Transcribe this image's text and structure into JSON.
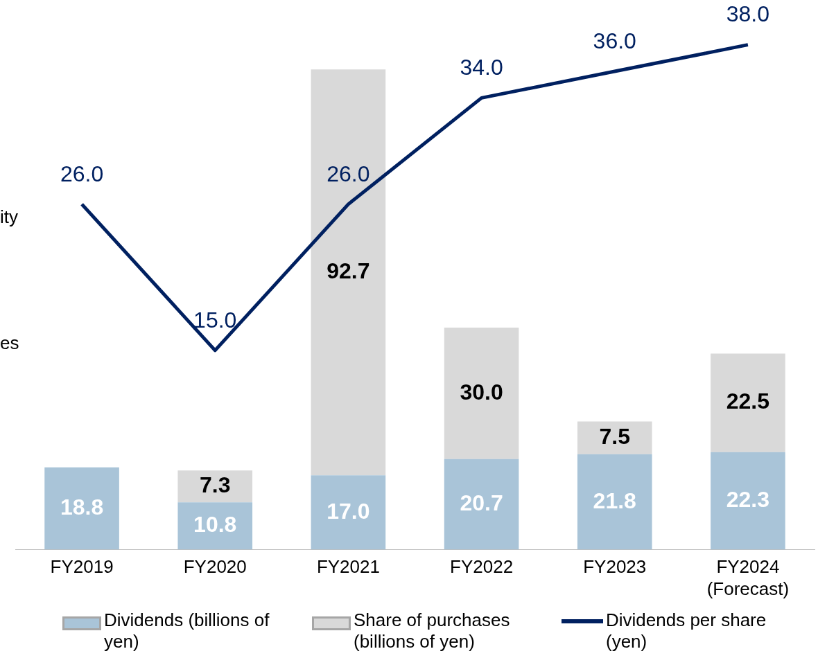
{
  "chart_data": {
    "type": "bar",
    "stacked": true,
    "categories": [
      "FY2019",
      "FY2020",
      "FY2021",
      "FY2022",
      "FY2023",
      "FY2024 (Forecast)"
    ],
    "series": [
      {
        "name": "Dividends (billions of yen)",
        "color": "#a9c4d8",
        "values": [
          18.8,
          10.8,
          17.0,
          20.7,
          21.8,
          22.3
        ],
        "value_labels": [
          "18.8",
          "10.8",
          "17.0",
          "20.7",
          "21.8",
          "22.3"
        ]
      },
      {
        "name": "Share of purchases (billions of yen)",
        "color": "#d9d9d9",
        "values": [
          null,
          7.3,
          92.7,
          30.0,
          7.5,
          22.5
        ],
        "value_labels": [
          null,
          "7.3",
          "92.7",
          "30.0",
          "7.5",
          "22.5"
        ]
      },
      {
        "name": "Dividends per share (yen)",
        "type": "line",
        "axis": "y2",
        "color": "#002060",
        "values": [
          26.0,
          15.0,
          26.0,
          34.0,
          36.0,
          38.0
        ],
        "value_labels": [
          "26.0",
          "15.0",
          "26.0",
          "34.0",
          "36.0",
          "38.0"
        ]
      }
    ],
    "marker": "none",
    "line_style": "solid",
    "legend": "bottom",
    "grid": false,
    "tick_labels": "x",
    "annotations": [
      "ity",
      "es"
    ]
  }
}
